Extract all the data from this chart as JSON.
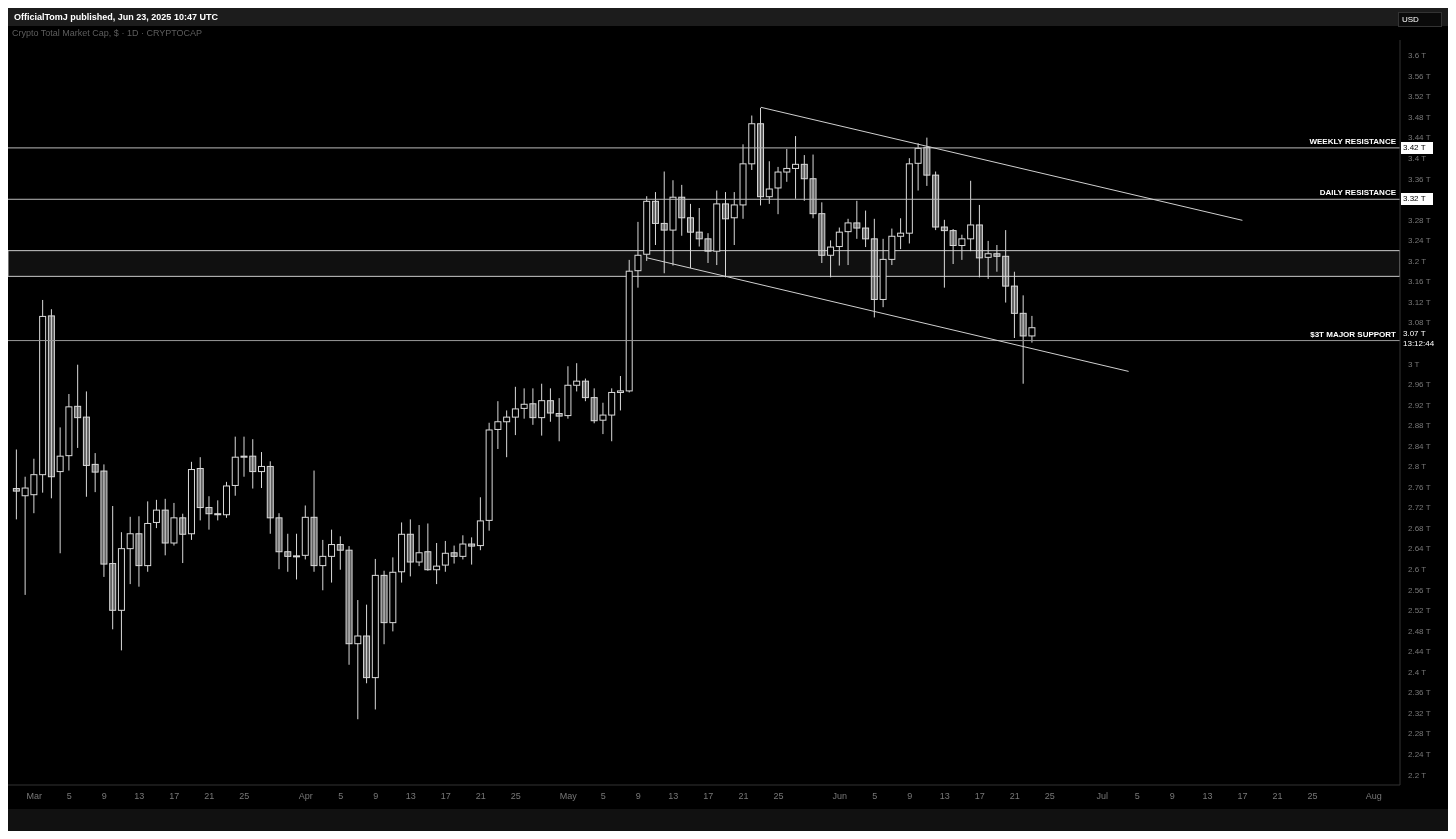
{
  "chart_data": {
    "type": "candlestick",
    "title": "Crypto Total Market Cap, $ · 1D · CRYPTOCAP",
    "ylabel": "USD",
    "color": "#d9d9d9",
    "x": [
      "2025-02-27",
      "2025-02-28",
      "2025-03-01",
      "2025-03-02",
      "2025-03-03",
      "2025-03-04",
      "2025-03-05",
      "2025-03-06",
      "2025-03-07",
      "2025-03-08",
      "2025-03-09",
      "2025-03-10",
      "2025-03-11",
      "2025-03-12",
      "2025-03-13",
      "2025-03-14",
      "2025-03-15",
      "2025-03-16",
      "2025-03-17",
      "2025-03-18",
      "2025-03-19",
      "2025-03-20",
      "2025-03-21",
      "2025-03-22",
      "2025-03-23",
      "2025-03-24",
      "2025-03-25",
      "2025-03-26",
      "2025-03-27",
      "2025-03-28",
      "2025-03-29",
      "2025-03-30",
      "2025-03-31",
      "2025-04-01",
      "2025-04-02",
      "2025-04-03",
      "2025-04-04",
      "2025-04-05",
      "2025-04-06",
      "2025-04-07",
      "2025-04-08",
      "2025-04-09",
      "2025-04-10",
      "2025-04-11",
      "2025-04-12",
      "2025-04-13",
      "2025-04-14",
      "2025-04-15",
      "2025-04-16",
      "2025-04-17",
      "2025-04-18",
      "2025-04-19",
      "2025-04-20",
      "2025-04-21",
      "2025-04-22",
      "2025-04-23",
      "2025-04-24",
      "2025-04-25",
      "2025-04-26",
      "2025-04-27",
      "2025-04-28",
      "2025-04-29",
      "2025-04-30",
      "2025-05-01",
      "2025-05-02",
      "2025-05-03",
      "2025-05-04",
      "2025-05-05",
      "2025-05-06",
      "2025-05-07",
      "2025-05-08",
      "2025-05-09",
      "2025-05-10",
      "2025-05-11",
      "2025-05-12",
      "2025-05-13",
      "2025-05-14",
      "2025-05-15",
      "2025-05-16",
      "2025-05-17",
      "2025-05-18",
      "2025-05-19",
      "2025-05-20",
      "2025-05-21",
      "2025-05-22",
      "2025-05-23",
      "2025-05-24",
      "2025-05-25",
      "2025-05-26",
      "2025-05-27",
      "2025-05-28",
      "2025-05-29",
      "2025-05-30",
      "2025-05-31",
      "2025-06-01",
      "2025-06-02",
      "2025-06-03",
      "2025-06-04",
      "2025-06-05",
      "2025-06-06",
      "2025-06-07",
      "2025-06-08",
      "2025-06-09",
      "2025-06-10",
      "2025-06-11",
      "2025-06-12",
      "2025-06-13",
      "2025-06-14",
      "2025-06-15",
      "2025-06-16",
      "2025-06-17",
      "2025-06-18",
      "2025-06-19",
      "2025-06-20",
      "2025-06-21",
      "2025-06-22",
      "2025-06-23"
    ],
    "ohlc": [
      [
        2.757,
        2.833,
        2.697,
        2.752
      ],
      [
        2.743,
        2.78,
        2.55,
        2.758
      ],
      [
        2.745,
        2.815,
        2.709,
        2.784
      ],
      [
        2.784,
        3.124,
        2.749,
        3.092
      ],
      [
        3.093,
        3.106,
        2.738,
        2.78
      ],
      [
        2.79,
        2.876,
        2.631,
        2.82
      ],
      [
        2.821,
        2.941,
        2.792,
        2.916
      ],
      [
        2.917,
        2.998,
        2.836,
        2.895
      ],
      [
        2.896,
        2.946,
        2.741,
        2.802
      ],
      [
        2.804,
        2.826,
        2.75,
        2.789
      ],
      [
        2.791,
        2.804,
        2.585,
        2.61
      ],
      [
        2.611,
        2.723,
        2.483,
        2.52
      ],
      [
        2.52,
        2.672,
        2.442,
        2.64
      ],
      [
        2.64,
        2.702,
        2.571,
        2.669
      ],
      [
        2.669,
        2.703,
        2.566,
        2.607
      ],
      [
        2.607,
        2.732,
        2.595,
        2.689
      ],
      [
        2.691,
        2.735,
        2.68,
        2.715
      ],
      [
        2.715,
        2.737,
        2.627,
        2.651
      ],
      [
        2.651,
        2.729,
        2.646,
        2.7
      ],
      [
        2.7,
        2.708,
        2.612,
        2.668
      ],
      [
        2.669,
        2.809,
        2.657,
        2.794
      ],
      [
        2.796,
        2.818,
        2.695,
        2.72
      ],
      [
        2.72,
        2.742,
        2.677,
        2.708
      ],
      [
        2.708,
        2.734,
        2.695,
        2.706
      ],
      [
        2.706,
        2.77,
        2.7,
        2.762
      ],
      [
        2.763,
        2.858,
        2.743,
        2.818
      ],
      [
        2.818,
        2.858,
        2.78,
        2.82
      ],
      [
        2.82,
        2.853,
        2.757,
        2.79
      ],
      [
        2.79,
        2.828,
        2.758,
        2.8
      ],
      [
        2.8,
        2.81,
        2.669,
        2.7
      ],
      [
        2.7,
        2.709,
        2.6,
        2.634
      ],
      [
        2.634,
        2.669,
        2.595,
        2.625
      ],
      [
        2.626,
        2.669,
        2.58,
        2.625
      ],
      [
        2.627,
        2.724,
        2.619,
        2.701
      ],
      [
        2.701,
        2.792,
        2.595,
        2.607
      ],
      [
        2.607,
        2.657,
        2.559,
        2.625
      ],
      [
        2.625,
        2.677,
        2.574,
        2.648
      ],
      [
        2.648,
        2.664,
        2.599,
        2.637
      ],
      [
        2.637,
        2.645,
        2.414,
        2.455
      ],
      [
        2.455,
        2.54,
        2.308,
        2.47
      ],
      [
        2.47,
        2.531,
        2.378,
        2.389
      ],
      [
        2.389,
        2.62,
        2.327,
        2.588
      ],
      [
        2.588,
        2.597,
        2.454,
        2.496
      ],
      [
        2.496,
        2.623,
        2.479,
        2.594
      ],
      [
        2.595,
        2.691,
        2.574,
        2.668
      ],
      [
        2.668,
        2.697,
        2.586,
        2.614
      ],
      [
        2.614,
        2.686,
        2.606,
        2.632
      ],
      [
        2.634,
        2.689,
        2.597,
        2.599
      ],
      [
        2.599,
        2.651,
        2.571,
        2.606
      ],
      [
        2.608,
        2.655,
        2.595,
        2.631
      ],
      [
        2.632,
        2.646,
        2.611,
        2.625
      ],
      [
        2.625,
        2.666,
        2.619,
        2.649
      ],
      [
        2.649,
        2.662,
        2.609,
        2.645
      ],
      [
        2.646,
        2.74,
        2.637,
        2.694
      ],
      [
        2.695,
        2.885,
        2.675,
        2.871
      ],
      [
        2.872,
        2.927,
        2.834,
        2.887
      ],
      [
        2.887,
        2.909,
        2.818,
        2.896
      ],
      [
        2.896,
        2.955,
        2.861,
        2.912
      ],
      [
        2.913,
        2.952,
        2.893,
        2.921
      ],
      [
        2.922,
        2.952,
        2.881,
        2.895
      ],
      [
        2.895,
        2.961,
        2.86,
        2.928
      ],
      [
        2.928,
        2.952,
        2.887,
        2.904
      ],
      [
        2.903,
        2.933,
        2.849,
        2.898
      ],
      [
        2.899,
        2.995,
        2.893,
        2.958
      ],
      [
        2.958,
        3.001,
        2.946,
        2.966
      ],
      [
        2.966,
        2.971,
        2.927,
        2.934
      ],
      [
        2.934,
        2.952,
        2.884,
        2.889
      ],
      [
        2.89,
        2.924,
        2.863,
        2.9
      ],
      [
        2.9,
        2.952,
        2.849,
        2.944
      ],
      [
        2.944,
        2.976,
        2.909,
        2.947
      ],
      [
        2.947,
        3.202,
        2.944,
        3.18
      ],
      [
        3.181,
        3.276,
        3.148,
        3.211
      ],
      [
        3.213,
        3.326,
        3.2,
        3.316
      ],
      [
        3.316,
        3.334,
        3.231,
        3.273
      ],
      [
        3.273,
        3.374,
        3.176,
        3.26
      ],
      [
        3.26,
        3.357,
        3.191,
        3.324
      ],
      [
        3.324,
        3.348,
        3.249,
        3.284
      ],
      [
        3.284,
        3.311,
        3.186,
        3.256
      ],
      [
        3.256,
        3.303,
        3.228,
        3.243
      ],
      [
        3.243,
        3.254,
        3.196,
        3.219
      ],
      [
        3.219,
        3.337,
        3.192,
        3.311
      ],
      [
        3.311,
        3.334,
        3.168,
        3.282
      ],
      [
        3.284,
        3.334,
        3.231,
        3.309
      ],
      [
        3.309,
        3.427,
        3.282,
        3.389
      ],
      [
        3.389,
        3.483,
        3.377,
        3.467
      ],
      [
        3.467,
        3.498,
        3.308,
        3.325
      ],
      [
        3.325,
        3.394,
        3.311,
        3.34
      ],
      [
        3.342,
        3.383,
        3.291,
        3.373
      ],
      [
        3.373,
        3.418,
        3.354,
        3.38
      ],
      [
        3.38,
        3.443,
        3.321,
        3.388
      ],
      [
        3.388,
        3.406,
        3.317,
        3.36
      ],
      [
        3.36,
        3.407,
        3.283,
        3.292
      ],
      [
        3.292,
        3.314,
        3.196,
        3.211
      ],
      [
        3.211,
        3.24,
        3.168,
        3.227
      ],
      [
        3.228,
        3.265,
        3.191,
        3.256
      ],
      [
        3.257,
        3.282,
        3.192,
        3.274
      ],
      [
        3.274,
        3.317,
        3.243,
        3.264
      ],
      [
        3.264,
        3.298,
        3.227,
        3.243
      ],
      [
        3.243,
        3.282,
        3.09,
        3.125
      ],
      [
        3.125,
        3.243,
        3.11,
        3.203
      ],
      [
        3.203,
        3.263,
        3.192,
        3.248
      ],
      [
        3.248,
        3.283,
        3.223,
        3.254
      ],
      [
        3.254,
        3.4,
        3.234,
        3.389
      ],
      [
        3.39,
        3.429,
        3.337,
        3.419
      ],
      [
        3.421,
        3.44,
        3.346,
        3.367
      ],
      [
        3.367,
        3.374,
        3.26,
        3.266
      ],
      [
        3.266,
        3.28,
        3.148,
        3.259
      ],
      [
        3.259,
        3.262,
        3.194,
        3.23
      ],
      [
        3.23,
        3.251,
        3.202,
        3.243
      ],
      [
        3.243,
        3.356,
        3.219,
        3.27
      ],
      [
        3.27,
        3.309,
        3.168,
        3.206
      ],
      [
        3.207,
        3.239,
        3.165,
        3.214
      ],
      [
        3.214,
        3.231,
        3.179,
        3.209
      ],
      [
        3.209,
        3.26,
        3.119,
        3.151
      ],
      [
        3.151,
        3.179,
        3.05,
        3.098
      ],
      [
        3.098,
        3.133,
        2.961,
        3.054
      ],
      [
        3.054,
        3.093,
        3.041,
        3.07
      ]
    ],
    "series": [
      {
        "type": "line",
        "x": [
          "2025-05-23",
          "2025-07-17"
        ],
        "values": [
          3.499,
          3.279
        ],
        "color": "#d0d0d0"
      },
      {
        "type": "line",
        "x": [
          "2025-05-10",
          "2025-07-04"
        ],
        "values": [
          3.206,
          2.985
        ],
        "color": "#d0d0d0"
      }
    ],
    "xlim": [
      "2025-02-26",
      "2025-08-04"
    ],
    "xticks": [
      {
        "value": "2025-03-01",
        "label": "Mar"
      },
      {
        "value": "2025-03-05",
        "label": "5"
      },
      {
        "value": "2025-03-09",
        "label": "9"
      },
      {
        "value": "2025-03-13",
        "label": "13"
      },
      {
        "value": "2025-03-17",
        "label": "17"
      },
      {
        "value": "2025-03-21",
        "label": "21"
      },
      {
        "value": "2025-03-25",
        "label": "25"
      },
      {
        "value": "2025-04-01",
        "label": "Apr"
      },
      {
        "value": "2025-04-05",
        "label": "5"
      },
      {
        "value": "2025-04-09",
        "label": "9"
      },
      {
        "value": "2025-04-13",
        "label": "13"
      },
      {
        "value": "2025-04-17",
        "label": "17"
      },
      {
        "value": "2025-04-21",
        "label": "21"
      },
      {
        "value": "2025-04-25",
        "label": "25"
      },
      {
        "value": "2025-05-01",
        "label": "May"
      },
      {
        "value": "2025-05-05",
        "label": "5"
      },
      {
        "value": "2025-05-09",
        "label": "9"
      },
      {
        "value": "2025-05-13",
        "label": "13"
      },
      {
        "value": "2025-05-17",
        "label": "17"
      },
      {
        "value": "2025-05-21",
        "label": "21"
      },
      {
        "value": "2025-05-25",
        "label": "25"
      },
      {
        "value": "2025-06-01",
        "label": "Jun"
      },
      {
        "value": "2025-06-05",
        "label": "5"
      },
      {
        "value": "2025-06-09",
        "label": "9"
      },
      {
        "value": "2025-06-13",
        "label": "13"
      },
      {
        "value": "2025-06-17",
        "label": "17"
      },
      {
        "value": "2025-06-21",
        "label": "21"
      },
      {
        "value": "2025-06-25",
        "label": "25"
      },
      {
        "value": "2025-07-01",
        "label": "Jul"
      },
      {
        "value": "2025-07-05",
        "label": "5"
      },
      {
        "value": "2025-07-09",
        "label": "9"
      },
      {
        "value": "2025-07-13",
        "label": "13"
      },
      {
        "value": "2025-07-17",
        "label": "17"
      },
      {
        "value": "2025-07-21",
        "label": "21"
      },
      {
        "value": "2025-07-25",
        "label": "25"
      },
      {
        "value": "2025-08-01",
        "label": "Aug"
      }
    ],
    "ylim": [
      2.18,
      3.63
    ],
    "yticks": [
      {
        "value": 2.2,
        "label": "2.2 T"
      },
      {
        "value": 2.24,
        "label": "2.24 T"
      },
      {
        "value": 2.28,
        "label": "2.28 T"
      },
      {
        "value": 2.32,
        "label": "2.32 T"
      },
      {
        "value": 2.36,
        "label": "2.36 T"
      },
      {
        "value": 2.4,
        "label": "2.4 T"
      },
      {
        "value": 2.44,
        "label": "2.44 T"
      },
      {
        "value": 2.48,
        "label": "2.48 T"
      },
      {
        "value": 2.52,
        "label": "2.52 T"
      },
      {
        "value": 2.56,
        "label": "2.56 T"
      },
      {
        "value": 2.6,
        "label": "2.6 T"
      },
      {
        "value": 2.64,
        "label": "2.64 T"
      },
      {
        "value": 2.68,
        "label": "2.68 T"
      },
      {
        "value": 2.72,
        "label": "2.72 T"
      },
      {
        "value": 2.76,
        "label": "2.76 T"
      },
      {
        "value": 2.8,
        "label": "2.8 T"
      },
      {
        "value": 2.84,
        "label": "2.84 T"
      },
      {
        "value": 2.88,
        "label": "2.88 T"
      },
      {
        "value": 2.92,
        "label": "2.92 T"
      },
      {
        "value": 2.96,
        "label": "2.96 T"
      },
      {
        "value": 3,
        "label": "3 T"
      },
      {
        "value": 3.04,
        "label": null
      },
      {
        "value": 3.08,
        "label": "3.08 T"
      },
      {
        "value": 3.12,
        "label": "3.12 T"
      },
      {
        "value": 3.16,
        "label": "3.16 T"
      },
      {
        "value": 3.2,
        "label": "3.2 T"
      },
      {
        "value": 3.24,
        "label": "3.24 T"
      },
      {
        "value": 3.28,
        "label": "3.28 T"
      },
      {
        "value": 3.32,
        "label": null
      },
      {
        "value": 3.36,
        "label": "3.36 T"
      },
      {
        "value": 3.4,
        "label": "3.4 T"
      },
      {
        "value": 3.44,
        "label": "3.44 T"
      },
      {
        "value": 3.48,
        "label": "3.48 T"
      },
      {
        "value": 3.52,
        "label": "3.52 T"
      },
      {
        "value": 3.56,
        "label": "3.56 T"
      },
      {
        "value": 3.6,
        "label": "3.6 T"
      }
    ],
    "ref_lines": [
      {
        "axis": "y",
        "value": 3.42,
        "label": "WEEKLY RESISTANCE",
        "color": "#bbbbbb"
      },
      {
        "axis": "y",
        "value": 3.32,
        "label": "DAILY RESISTANCE",
        "color": "#bbbbbb"
      },
      {
        "axis": "y",
        "value": 3.045,
        "label": "$3T MAJOR SUPPORT",
        "color": "#999999"
      }
    ],
    "bands": [
      {
        "axis": "y",
        "from": 3.17,
        "to": 3.22,
        "color": "#cccccc"
      }
    ],
    "annotations": [
      "OfficialTomJ published, Jun 23, 2025 10:47 UTC",
      "3.42 T",
      "3.32 T",
      "3.07 T 13:12:44"
    ]
  }
}
